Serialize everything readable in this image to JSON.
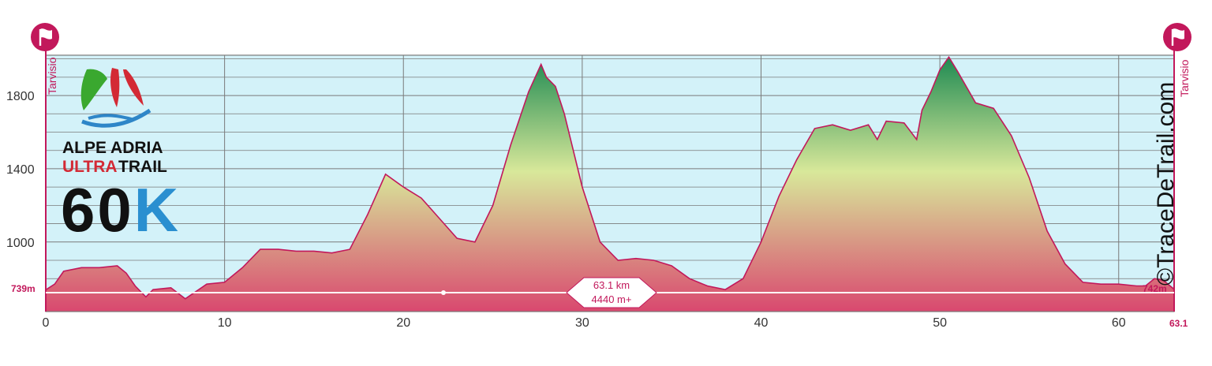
{
  "colors": {
    "plot_bg": "#d3f2f9",
    "outline": "#c2185b",
    "grid": "#7a7a7a",
    "high": "#1e8a52",
    "mid": "#d8e89a",
    "low": "#d9486f",
    "logo_green": "#3aa82f",
    "logo_red": "#d32a35",
    "logo_blue": "#2e86c8",
    "logo_k": "#2a8fd0"
  },
  "logo": {
    "line1": "ALPE ADRIA",
    "line2_accent": "ULTRA",
    "line2_rest": "TRAIL",
    "distance": "60K"
  },
  "start_label": "Tarvisio",
  "end_label": "Tarvisio",
  "start_alt": "739m",
  "end_alt": "742m",
  "summary": {
    "distance": "63.1 km",
    "gain": "4440 m+"
  },
  "credit": "©TraceDeTrail.com",
  "icons": {
    "start": "flag-icon",
    "end": "flag-icon"
  },
  "chart_data": {
    "type": "area",
    "xlabel": "",
    "ylabel": "",
    "xlim": [
      0,
      63.1
    ],
    "ylim": [
      620,
      2020
    ],
    "xticks": [
      0,
      10,
      20,
      30,
      40,
      50,
      60
    ],
    "yticks": [
      1000,
      1400,
      1800
    ],
    "x_end_label": "63.1",
    "grid": true,
    "x": [
      0,
      0.5,
      1,
      2,
      3,
      4,
      4.5,
      5,
      5.6,
      6,
      7,
      7.8,
      9,
      10,
      11,
      12,
      13,
      14,
      15,
      16,
      17,
      18,
      19,
      20,
      21,
      22,
      23,
      24,
      25,
      26,
      27,
      27.7,
      28,
      28.5,
      29,
      30,
      31,
      32,
      33,
      34,
      35,
      36,
      37,
      38,
      39,
      40,
      41,
      42,
      43,
      44,
      45,
      46,
      46.5,
      47,
      48,
      48.7,
      49,
      49.5,
      50,
      50.5,
      51,
      52,
      53,
      54,
      55,
      56,
      57,
      58,
      59,
      60,
      61,
      61.5,
      62,
      62.5,
      63.1
    ],
    "y": [
      739,
      770,
      840,
      860,
      860,
      870,
      830,
      760,
      700,
      740,
      750,
      690,
      770,
      780,
      860,
      960,
      960,
      950,
      950,
      940,
      960,
      1150,
      1370,
      1300,
      1240,
      1130,
      1020,
      1000,
      1200,
      1530,
      1820,
      1970,
      1900,
      1850,
      1700,
      1300,
      1000,
      900,
      910,
      900,
      870,
      800,
      760,
      740,
      800,
      1000,
      1250,
      1450,
      1620,
      1640,
      1610,
      1640,
      1560,
      1660,
      1650,
      1560,
      1720,
      1820,
      1940,
      2010,
      1930,
      1760,
      1730,
      1580,
      1350,
      1060,
      880,
      780,
      770,
      770,
      760,
      760,
      800,
      790,
      742
    ]
  }
}
